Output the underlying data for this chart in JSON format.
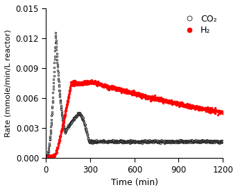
{
  "title": "",
  "xlabel": "Time (min)",
  "ylabel": "Rate (mmole/min/L reactor)",
  "xlim": [
    0,
    1200
  ],
  "ylim": [
    0,
    0.015
  ],
  "yticks": [
    0.0,
    0.003,
    0.006,
    0.009,
    0.012,
    0.015
  ],
  "xticks": [
    0,
    300,
    600,
    900,
    1200
  ],
  "co2_color": "#1a1a1a",
  "h2_color": "#ff0000",
  "legend_co2": "CO₂",
  "legend_h2": "H₂",
  "figsize": [
    3.43,
    2.76
  ],
  "dpi": 100
}
